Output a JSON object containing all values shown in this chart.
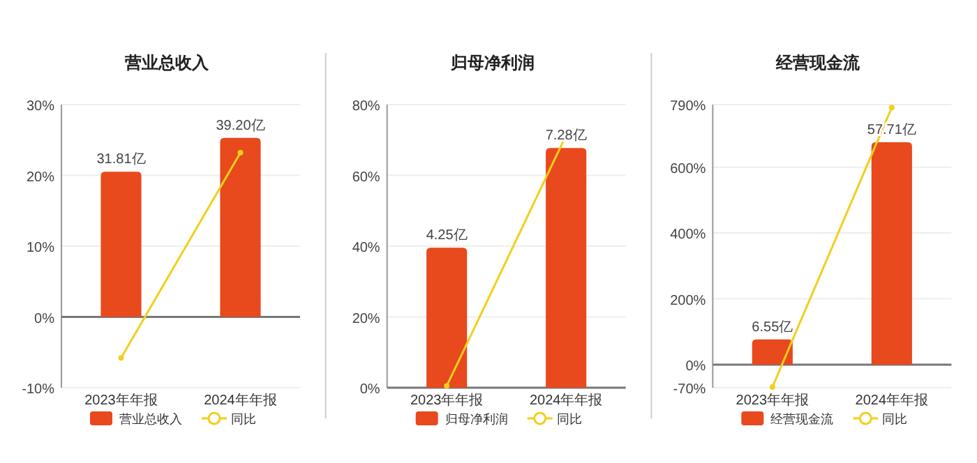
{
  "chart_data": [
    {
      "type": "bar",
      "title": "营业总收入",
      "categories": [
        "2023年年报",
        "2024年年报"
      ],
      "ylim": [
        -10,
        30
      ],
      "yticks": [
        {
          "value": -10,
          "label": "-10%"
        },
        {
          "value": 0,
          "label": "0%"
        },
        {
          "value": 10,
          "label": "10%"
        },
        {
          "value": 20,
          "label": "20%"
        },
        {
          "value": 30,
          "label": "30%"
        }
      ],
      "y2lim": [
        -15.5,
        46.5
      ],
      "grid": "y",
      "legend": "bottom",
      "marker": "circle",
      "series": [
        {
          "name": "营业总收入",
          "axis": "y2",
          "color": "#e8491d",
          "values": [
            31.81,
            39.2
          ],
          "value_labels": [
            "31.81亿",
            "39.20亿"
          ]
        },
        {
          "name": "同比",
          "type": "line",
          "color": "#f2cf1c",
          "values": [
            -5.8,
            23.2
          ]
        }
      ]
    },
    {
      "type": "bar",
      "title": "归母净利润",
      "categories": [
        "2023年年报",
        "2024年年报"
      ],
      "ylim": [
        0,
        80
      ],
      "yticks": [
        {
          "value": 0,
          "label": "0%"
        },
        {
          "value": 20,
          "label": "20%"
        },
        {
          "value": 40,
          "label": "40%"
        },
        {
          "value": 60,
          "label": "60%"
        },
        {
          "value": 80,
          "label": "80%"
        }
      ],
      "y2lim": [
        0,
        8.6
      ],
      "grid": "y",
      "legend": "bottom",
      "marker": "circle",
      "series": [
        {
          "name": "归母净利润",
          "axis": "y2",
          "color": "#e8491d",
          "values": [
            4.25,
            7.28
          ],
          "value_labels": [
            "4.25亿",
            "7.28亿"
          ]
        },
        {
          "name": "同比",
          "type": "line",
          "color": "#f2cf1c",
          "values": [
            0.5,
            71.3
          ]
        }
      ]
    },
    {
      "type": "bar",
      "title": "经营现金流",
      "categories": [
        "2023年年报",
        "2024年年报"
      ],
      "ylim": [
        -70,
        790
      ],
      "yticks": [
        {
          "value": -70,
          "label": "-70%"
        },
        {
          "value": 0,
          "label": "0%"
        },
        {
          "value": 200,
          "label": "200%"
        },
        {
          "value": 400,
          "label": "400%"
        },
        {
          "value": 600,
          "label": "600%"
        },
        {
          "value": 790,
          "label": "790%"
        }
      ],
      "y2lim": [
        -5.98,
        67.5
      ],
      "grid": "y",
      "legend": "bottom",
      "marker": "circle",
      "series": [
        {
          "name": "经营现金流",
          "axis": "y2",
          "color": "#e8491d",
          "values": [
            6.55,
            57.71
          ],
          "value_labels": [
            "6.55亿",
            "57.71亿"
          ]
        },
        {
          "name": "同比",
          "type": "line",
          "color": "#f2cf1c",
          "values": [
            -68,
            781
          ]
        }
      ]
    }
  ]
}
